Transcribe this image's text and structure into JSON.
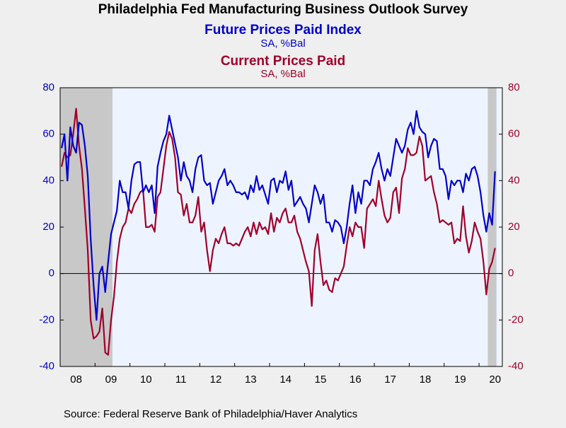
{
  "chart_data": {
    "type": "line",
    "title": "Philadelphia Fed Manufacturing Business Outlook Survey",
    "source": "Source:  Federal Reserve Bank of Philadelphia/Haver Analytics",
    "categories": [
      null,
      null,
      null,
      null,
      null,
      "08",
      null,
      null,
      null,
      null,
      null,
      null,
      null,
      null,
      null,
      null,
      null,
      "09",
      null,
      null,
      null,
      null,
      null,
      null,
      null,
      null,
      null,
      null,
      null,
      "10",
      null,
      null,
      null,
      null,
      null,
      null,
      null,
      null,
      null,
      null,
      null,
      "11",
      null,
      null,
      null,
      null,
      null,
      null,
      null,
      null,
      null,
      null,
      null,
      "12",
      null,
      null,
      null,
      null,
      null,
      null,
      null,
      null,
      null,
      null,
      null,
      "13",
      null,
      null,
      null,
      null,
      null,
      null,
      null,
      null,
      null,
      null,
      null,
      "14",
      null,
      null,
      null,
      null,
      null,
      null,
      null,
      null,
      null,
      null,
      null,
      "15",
      null,
      null,
      null,
      null,
      null,
      null,
      null,
      null,
      null,
      null,
      null,
      "16",
      null,
      null,
      null,
      null,
      null,
      null,
      null,
      null,
      null,
      null,
      null,
      "17",
      null,
      null,
      null,
      null,
      null,
      null,
      null,
      null,
      null,
      null,
      null,
      "18",
      null,
      null,
      null,
      null,
      null,
      null,
      null,
      null,
      null,
      null,
      null,
      "19",
      null,
      null,
      null,
      null,
      null,
      null,
      null,
      null,
      null,
      null,
      null,
      "20"
    ],
    "series": [
      {
        "name": "Future Prices Paid Index",
        "unit": "SA, %Bal",
        "color": "#0000cc",
        "axis": "y",
        "values": [
          54,
          60,
          40,
          63,
          55,
          52,
          65,
          64,
          55,
          42,
          15,
          -5,
          -20,
          0,
          3,
          -8,
          5,
          17,
          22,
          27,
          40,
          35,
          35,
          28,
          40,
          47,
          48,
          48,
          35,
          38,
          35,
          38,
          26,
          46,
          52,
          57,
          60,
          68,
          62,
          56,
          50,
          40,
          48,
          42,
          40,
          35,
          45,
          50,
          51,
          40,
          38,
          39,
          30,
          35,
          40,
          42,
          45,
          38,
          40,
          38,
          35,
          35,
          34,
          35,
          32,
          38,
          35,
          42,
          36,
          38,
          34,
          30,
          40,
          41,
          35,
          40,
          39,
          44,
          36,
          40,
          29,
          31,
          33,
          30,
          28,
          22,
          30,
          38,
          35,
          30,
          34,
          22,
          22,
          18,
          23,
          22,
          20,
          13,
          20,
          30,
          38,
          26,
          35,
          30,
          40,
          40,
          38,
          45,
          48,
          52,
          45,
          40,
          45,
          42,
          50,
          58,
          55,
          52,
          55,
          62,
          65,
          60,
          70,
          63,
          61,
          60,
          50,
          55,
          58,
          57,
          45,
          45,
          42,
          32,
          40,
          38,
          40,
          40,
          35,
          43,
          40,
          45,
          46,
          42,
          35,
          25,
          18,
          26,
          21,
          44
        ]
      },
      {
        "name": "Current Prices Paid",
        "unit": "SA, %Bal",
        "color": "#a0002a",
        "axis": "y2",
        "values": [
          46,
          52,
          50,
          51,
          60,
          71,
          55,
          45,
          28,
          10,
          -20,
          -28,
          -27,
          -25,
          -15,
          -34,
          -35,
          -20,
          -10,
          5,
          15,
          20,
          22,
          28,
          26,
          30,
          32,
          35,
          36,
          20,
          20,
          21,
          18,
          33,
          35,
          45,
          55,
          61,
          58,
          50,
          35,
          34,
          25,
          30,
          22,
          22,
          25,
          33,
          18,
          22,
          10,
          1,
          10,
          15,
          13,
          17,
          20,
          13,
          13,
          12,
          13,
          12,
          15,
          18,
          20,
          16,
          22,
          17,
          22,
          19,
          20,
          17,
          26,
          18,
          24,
          22,
          26,
          28,
          22,
          22,
          25,
          18,
          15,
          10,
          5,
          1,
          -14,
          10,
          17,
          5,
          -5,
          -3,
          -7,
          -8,
          -2,
          -3,
          0,
          3,
          12,
          20,
          16,
          22,
          20,
          20,
          11,
          28,
          30,
          32,
          29,
          40,
          32,
          25,
          22,
          24,
          35,
          37,
          26,
          41,
          45,
          54,
          51,
          51,
          52,
          59,
          55,
          40,
          41,
          42,
          35,
          30,
          22,
          23,
          22,
          21,
          22,
          13,
          15,
          14,
          29,
          16,
          9,
          14,
          22,
          18,
          15,
          5,
          -9,
          2,
          5,
          11
        ]
      }
    ],
    "recessions": [
      [
        0,
        17
      ],
      [
        147,
        149
      ]
    ],
    "ylim": [
      -40,
      80
    ],
    "yticks": [
      -40,
      -20,
      0,
      20,
      40,
      60,
      80
    ],
    "y2lim": [
      -40,
      80
    ],
    "y2ticks": [
      -40,
      -20,
      0,
      20,
      40,
      60,
      80
    ]
  }
}
